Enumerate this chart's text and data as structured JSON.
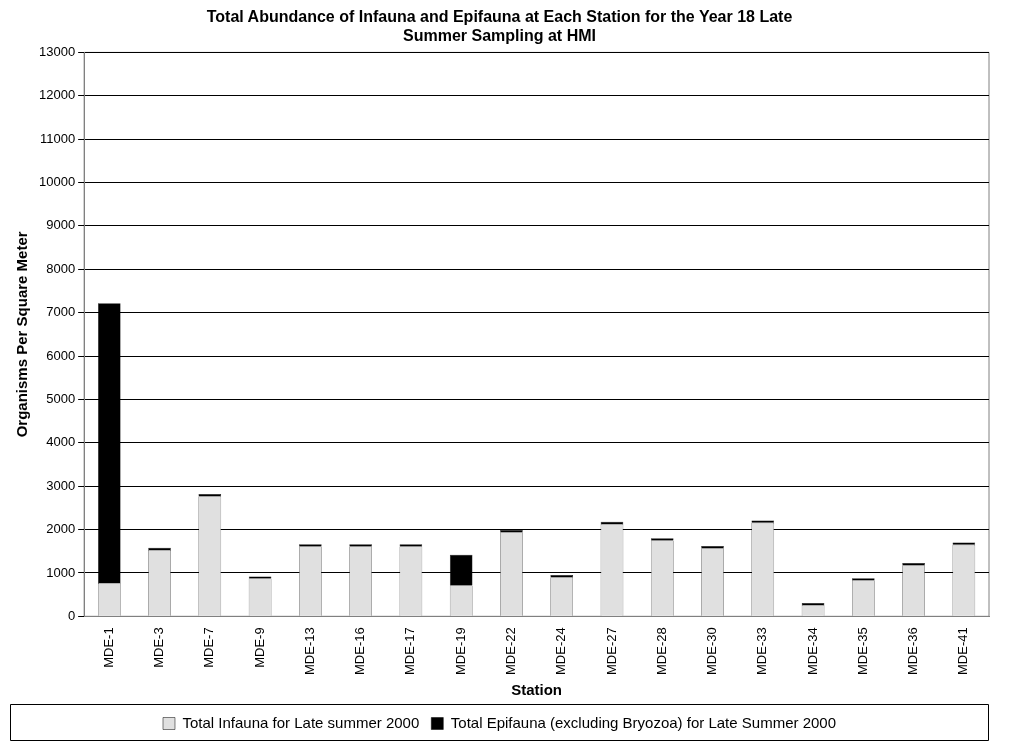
{
  "chart_data": {
    "type": "bar",
    "title": "Total Abundance of Infauna and Epifauna at Each Station for the Year 18 Late Summer Sampling at HMI",
    "xlabel": "Station",
    "ylabel": "Organisms Per Square Meter",
    "categories": [
      "MDE-1",
      "MDE-3",
      "MDE-7",
      "MDE-9",
      "MDE-13",
      "MDE-16",
      "MDE-17",
      "MDE-19",
      "MDE-22",
      "MDE-24",
      "MDE-27",
      "MDE-28",
      "MDE-30",
      "MDE-33",
      "MDE-34",
      "MDE-35",
      "MDE-36",
      "MDE-41"
    ],
    "stacked": true,
    "grid": "y",
    "legend": "bottom",
    "series": [
      {
        "name": "Total Infauna for Late summer 2000",
        "color": "#e0e0e0",
        "values": [
          770,
          1530,
          2770,
          870,
          1610,
          1610,
          1610,
          710,
          1940,
          900,
          2130,
          1750,
          1570,
          2160,
          260,
          830,
          1180,
          1650
        ]
      },
      {
        "name": "Total Epifauna (excluding Bryozoa) for Late Summer 2000",
        "color": "#000000",
        "values": [
          6450,
          50,
          50,
          50,
          50,
          50,
          50,
          710,
          50,
          50,
          50,
          50,
          50,
          50,
          50,
          50,
          50,
          50
        ]
      }
    ],
    "ylim": [
      0,
      13000
    ],
    "yticks": [
      0,
      1000,
      2000,
      3000,
      4000,
      5000,
      6000,
      7000,
      8000,
      9000,
      10000,
      11000,
      12000,
      13000
    ]
  }
}
